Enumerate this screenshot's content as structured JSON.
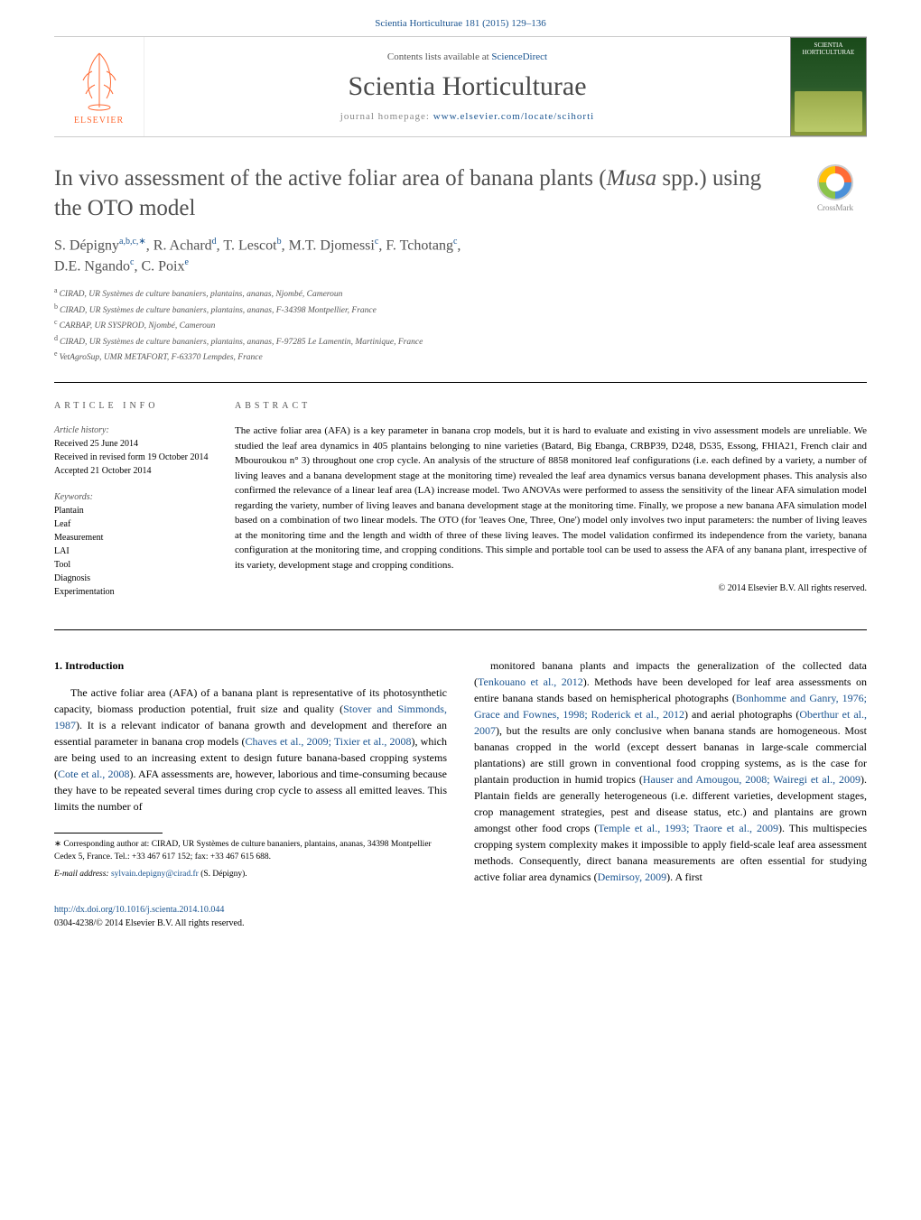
{
  "header": {
    "citation": "Scientia Horticulturae 181 (2015) 129–136",
    "contents_prefix": "Contents lists available at ",
    "contents_link": "ScienceDirect",
    "journal_name": "Scientia Horticulturae",
    "homepage_prefix": "journal homepage: ",
    "homepage_link": "www.elsevier.com/locate/scihorti",
    "elsevier": "ELSEVIER",
    "cover_top": "SCIENTIA HORTICULTURAE",
    "crossmark": "CrossMark"
  },
  "article": {
    "title_pre": "In vivo assessment of the active foliar area of banana plants (",
    "title_em": "Musa",
    "title_post": " spp.) using the OTO model",
    "authors_line1_parts": [
      {
        "t": "S. Dépigny",
        "s": "a,b,c,∗"
      },
      {
        "t": ", R. Achard",
        "s": "d"
      },
      {
        "t": ", T. Lescot",
        "s": "b"
      },
      {
        "t": ", M.T. Djomessi",
        "s": "c"
      },
      {
        "t": ", F. Tchotang",
        "s": "c"
      },
      {
        "t": ",",
        "s": ""
      }
    ],
    "authors_line2_parts": [
      {
        "t": "D.E. Ngando",
        "s": "c"
      },
      {
        "t": ", C. Poix",
        "s": "e"
      }
    ],
    "affiliations": [
      {
        "s": "a",
        "t": "CIRAD, UR Systèmes de culture bananiers, plantains, ananas, Njombé, Cameroun"
      },
      {
        "s": "b",
        "t": "CIRAD, UR Systèmes de culture bananiers, plantains, ananas, F-34398 Montpellier, France"
      },
      {
        "s": "c",
        "t": "CARBAP, UR SYSPROD, Njombé, Cameroun"
      },
      {
        "s": "d",
        "t": "CIRAD, UR Systèmes de culture bananiers, plantains, ananas, F-97285 Le Lamentin, Martinique, France"
      },
      {
        "s": "e",
        "t": "VetAgroSup, UMR METAFORT, F-63370 Lempdes, France"
      }
    ]
  },
  "info": {
    "heading": "article info",
    "history_label": "Article history:",
    "history": [
      "Received 25 June 2014",
      "Received in revised form 19 October 2014",
      "Accepted 21 October 2014"
    ],
    "keywords_label": "Keywords:",
    "keywords": [
      "Plantain",
      "Leaf",
      "Measurement",
      "LAI",
      "Tool",
      "Diagnosis",
      "Experimentation"
    ]
  },
  "abstract": {
    "heading": "abstract",
    "text": "The active foliar area (AFA) is a key parameter in banana crop models, but it is hard to evaluate and existing in vivo assessment models are unreliable. We studied the leaf area dynamics in 405 plantains belonging to nine varieties (Batard, Big Ebanga, CRBP39, D248, D535, Essong, FHIA21, French clair and Mbouroukou n° 3) throughout one crop cycle. An analysis of the structure of 8858 monitored leaf configurations (i.e. each defined by a variety, a number of living leaves and a banana development stage at the monitoring time) revealed the leaf area dynamics versus banana development phases. This analysis also confirmed the relevance of a linear leaf area (LA) increase model. Two ANOVAs were performed to assess the sensitivity of the linear AFA simulation model regarding the variety, number of living leaves and banana development stage at the monitoring time. Finally, we propose a new banana AFA simulation model based on a combination of two linear models. The OTO (for 'leaves One, Three, One') model only involves two input parameters: the number of living leaves at the monitoring time and the length and width of three of these living leaves. The model validation confirmed its independence from the variety, banana configuration at the monitoring time, and cropping conditions. This simple and portable tool can be used to assess the AFA of any banana plant, irrespective of its variety, development stage and cropping conditions.",
    "copyright": "© 2014 Elsevier B.V. All rights reserved."
  },
  "body": {
    "section_num": "1.",
    "section_title": "Introduction",
    "left_para": "The active foliar area (AFA) of a banana plant is representative of its photosynthetic capacity, biomass production potential, fruit size and quality (Stover and Simmonds, 1987). It is a relevant indicator of banana growth and development and therefore an essential parameter in banana crop models (Chaves et al., 2009; Tixier et al., 2008), which are being used to an increasing extent to design future banana-based cropping systems (Cote et al., 2008). AFA assessments are, however, laborious and time-consuming because they have to be repeated several times during crop cycle to assess all emitted leaves. This limits the number of",
    "right_para": "monitored banana plants and impacts the generalization of the collected data (Tenkouano et al., 2012). Methods have been developed for leaf area assessments on entire banana stands based on hemispherical photographs (Bonhomme and Ganry, 1976; Grace and Fownes, 1998; Roderick et al., 2012) and aerial photographs (Oberthur et al., 2007), but the results are only conclusive when banana stands are homogeneous. Most bananas cropped in the world (except dessert bananas in large-scale commercial plantations) are still grown in conventional food cropping systems, as is the case for plantain production in humid tropics (Hauser and Amougou, 2008; Wairegi et al., 2009). Plantain fields are generally heterogeneous (i.e. different varieties, development stages, crop management strategies, pest and disease status, etc.) and plantains are grown amongst other food crops (Temple et al., 1993; Traore et al., 2009). This multispecies cropping system complexity makes it impossible to apply field-scale leaf area assessment methods. Consequently, direct banana measurements are often essential for studying active foliar area dynamics (Demirsoy, 2009). A first",
    "left_refs": [
      "Stover and Simmonds, 1987",
      "Chaves et al., 2009; Tixier et al., 2008",
      "Cote et al., 2008"
    ],
    "right_refs": [
      "Tenkouano et al., 2012",
      "Bonhomme and Ganry, 1976; Grace and Fownes, 1998; Roderick et al., 2012",
      "Oberthur et al., 2007",
      "Hauser and Amougou, 2008; Wairegi et al., 2009",
      "Temple et al., 1993; Traore et al., 2009",
      "Demirsoy, 2009"
    ]
  },
  "footnote": {
    "corr_label": "∗ Corresponding author at: CIRAD, UR Systèmes de culture bananiers, plantains, ananas, 34398 Montpellier Cedex 5, France. Tel.: +33 467 617 152; fax: +33 467 615 688.",
    "email_label": "E-mail address: ",
    "email": "sylvain.depigny@cirad.fr",
    "email_suffix": " (S. Dépigny)."
  },
  "doi": {
    "link": "http://dx.doi.org/10.1016/j.scienta.2014.10.044",
    "issn": "0304-4238/© 2014 Elsevier B.V. All rights reserved."
  },
  "colors": {
    "link": "#1a5490",
    "text": "#505050",
    "orange": "#ff6b35"
  }
}
